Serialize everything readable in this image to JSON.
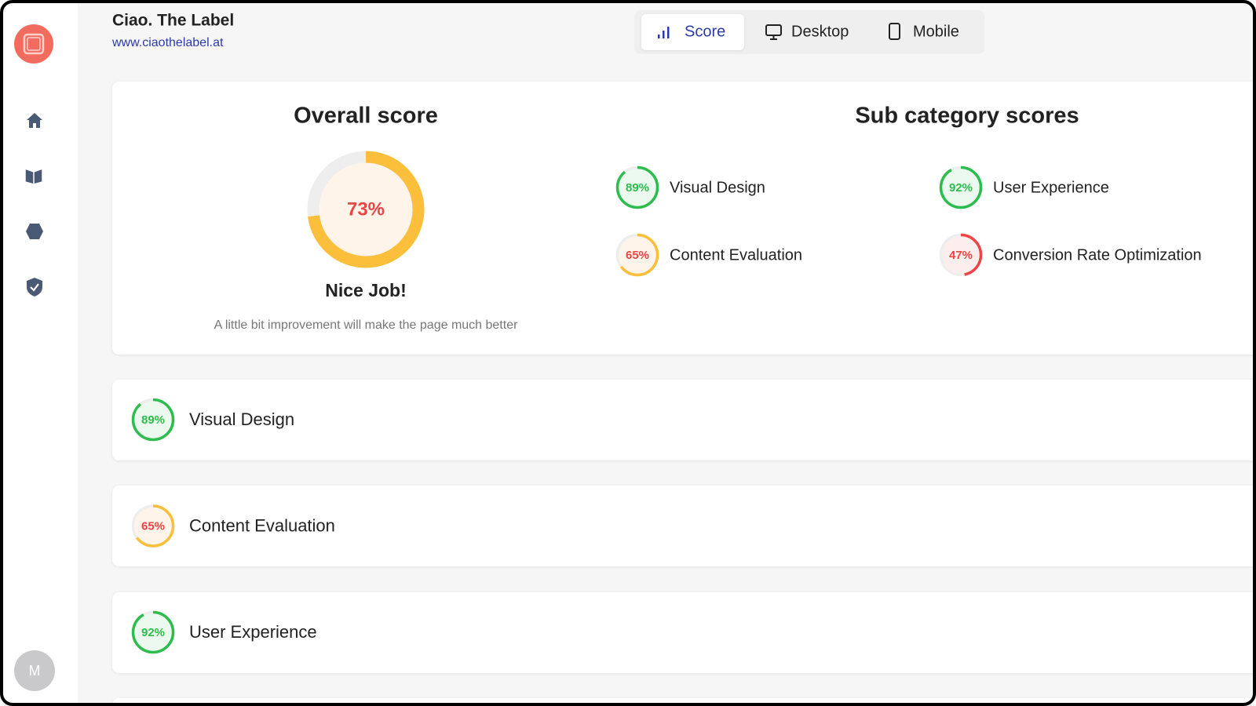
{
  "header": {
    "site_name": "Ciao. The Label",
    "url": "www.ciaothelabel.at"
  },
  "tabs": [
    "Score",
    "Desktop",
    "Mobile"
  ],
  "overall": {
    "title": "Overall score",
    "score": {
      "value": 73,
      "label": "73%"
    },
    "color": "#fbbf3c",
    "text_color": "#ef4444",
    "fill": "#fff4ea",
    "verdict": "Nice Job!",
    "message": "A little bit improvement will make the page much better"
  },
  "subcategories": {
    "title": "Sub category scores",
    "items": [
      {
        "name": "Visual Design",
        "score": {
          "value": 89,
          "label": "89%"
        },
        "color": "#2dbd4e",
        "text_color": "#2dbd4e",
        "fill": "#ebf9ee"
      },
      {
        "name": "User Experience",
        "score": {
          "value": 92,
          "label": "92%"
        },
        "color": "#2dbd4e",
        "text_color": "#2dbd4e",
        "fill": "#ebf9ee"
      },
      {
        "name": "Content Evaluation",
        "score": {
          "value": 65,
          "label": "65%"
        },
        "color": "#fbbf3c",
        "text_color": "#ef4444",
        "fill": "#fff4ea"
      },
      {
        "name": "Conversion Rate Optimization",
        "score": {
          "value": 47,
          "label": "47%"
        },
        "color": "#ef4444",
        "text_color": "#ef4444",
        "fill": "#fdeeee"
      }
    ]
  },
  "sections": [
    {
      "name": "Visual Design",
      "score": {
        "value": 89,
        "label": "89%"
      },
      "color": "#2dbd4e",
      "text_color": "#2dbd4e",
      "fill": "#ebf9ee"
    },
    {
      "name": "Content Evaluation",
      "score": {
        "value": 65,
        "label": "65%"
      },
      "color": "#fbbf3c",
      "text_color": "#ef4444",
      "fill": "#fff4ea"
    },
    {
      "name": "User Experience",
      "score": {
        "value": 92,
        "label": "92%"
      },
      "color": "#2dbd4e",
      "text_color": "#2dbd4e",
      "fill": "#ebf9ee"
    }
  ],
  "avatar": "M"
}
